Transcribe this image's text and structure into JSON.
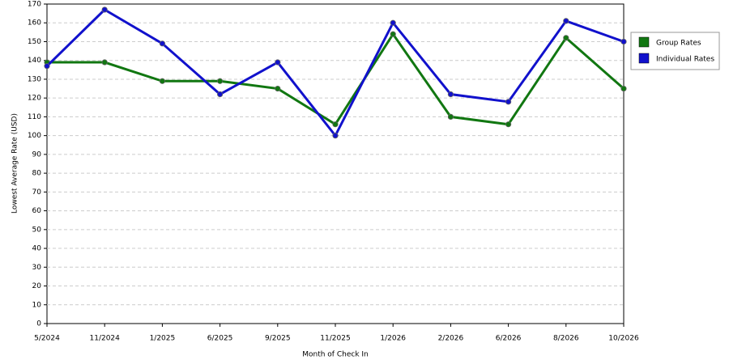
{
  "chart_data": {
    "type": "line",
    "x_label": "Month of Check In",
    "y_label": "Lowest Average Rate (USD)",
    "categories": [
      "5/2024",
      "11/2024",
      "1/2025",
      "6/2025",
      "9/2025",
      "11/2025",
      "1/2026",
      "2/2026",
      "6/2026",
      "8/2026",
      "10/2026"
    ],
    "series": [
      {
        "name": "Group Rates",
        "color": "#117711",
        "values": [
          139,
          139,
          129,
          129,
          125,
          106,
          154,
          110,
          106,
          152,
          125
        ]
      },
      {
        "name": "Individual Rates",
        "color": "#1111cc",
        "values": [
          137,
          167,
          149,
          122,
          139,
          100,
          160,
          122,
          118,
          161,
          150
        ]
      }
    ],
    "ylim": [
      0,
      170
    ],
    "yticks": [
      0,
      10,
      20,
      30,
      40,
      50,
      60,
      70,
      80,
      90,
      100,
      110,
      120,
      130,
      140,
      150,
      160,
      170
    ],
    "grid": true,
    "legend": "right"
  }
}
